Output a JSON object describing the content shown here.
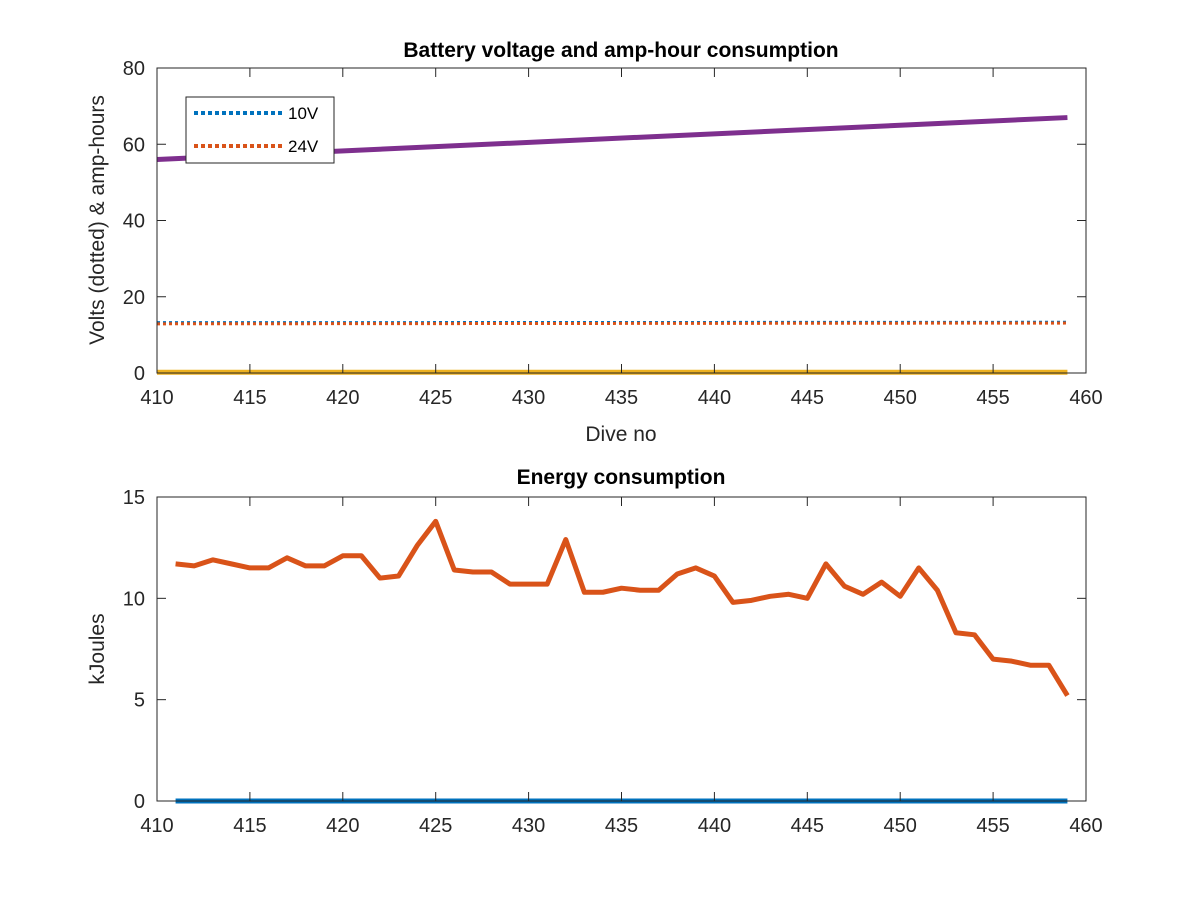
{
  "chart_data": [
    {
      "type": "line",
      "title": "Battery voltage and amp-hour consumption",
      "xlabel": "Dive no",
      "ylabel": "Volts (dotted) & amp-hours",
      "xlim": [
        410,
        460
      ],
      "ylim": [
        0,
        80
      ],
      "xticks": [
        410,
        415,
        420,
        425,
        430,
        435,
        440,
        445,
        450,
        455,
        460
      ],
      "yticks": [
        0,
        20,
        40,
        60,
        80
      ],
      "grid": false,
      "legend_position": "top-left",
      "series": [
        {
          "name": "10V",
          "style": "dotted",
          "color": "#0072BD",
          "x": [
            410,
            459
          ],
          "y": [
            13.2,
            13.3
          ]
        },
        {
          "name": "24V",
          "style": "dotted",
          "color": "#D95319",
          "x": [
            410,
            459
          ],
          "y": [
            12.9,
            13.1
          ]
        },
        {
          "style": "solid",
          "color": "#EDB120",
          "x": [
            410,
            459
          ],
          "y": [
            0.2,
            0.2
          ]
        },
        {
          "style": "solid",
          "color": "#7E2F8E",
          "x": [
            410,
            459
          ],
          "y": [
            56,
            67
          ]
        }
      ]
    },
    {
      "type": "line",
      "title": "Energy consumption",
      "xlabel": "",
      "ylabel": "kJoules",
      "xlim": [
        410,
        460
      ],
      "ylim": [
        0,
        15
      ],
      "xticks": [
        410,
        415,
        420,
        425,
        430,
        435,
        440,
        445,
        450,
        455,
        460
      ],
      "yticks": [
        0,
        5,
        10,
        15
      ],
      "grid": false,
      "series": [
        {
          "style": "solid",
          "color": "#0072BD",
          "x": [
            411,
            459
          ],
          "y": [
            0,
            0
          ]
        },
        {
          "style": "solid",
          "color": "#D95319",
          "x": [
            411,
            412,
            413,
            414,
            415,
            416,
            417,
            418,
            419,
            420,
            421,
            422,
            423,
            424,
            425,
            426,
            427,
            428,
            429,
            430,
            431,
            432,
            433,
            434,
            435,
            436,
            437,
            438,
            439,
            440,
            441,
            442,
            443,
            444,
            445,
            446,
            447,
            448,
            449,
            450,
            451,
            452,
            453,
            454,
            455,
            456,
            457,
            458,
            459
          ],
          "y": [
            11.7,
            11.6,
            11.9,
            11.7,
            11.5,
            11.5,
            12.0,
            11.6,
            11.6,
            12.1,
            12.1,
            11.0,
            11.1,
            12.6,
            13.8,
            11.4,
            11.3,
            11.3,
            10.7,
            10.7,
            10.7,
            12.9,
            10.3,
            10.3,
            10.5,
            10.4,
            10.4,
            11.2,
            11.5,
            11.1,
            9.8,
            9.9,
            10.1,
            10.2,
            10.0,
            11.7,
            10.6,
            10.2,
            10.8,
            10.1,
            11.5,
            10.4,
            8.3,
            8.2,
            7.0,
            6.9,
            6.7,
            6.7,
            5.2
          ]
        }
      ]
    }
  ]
}
